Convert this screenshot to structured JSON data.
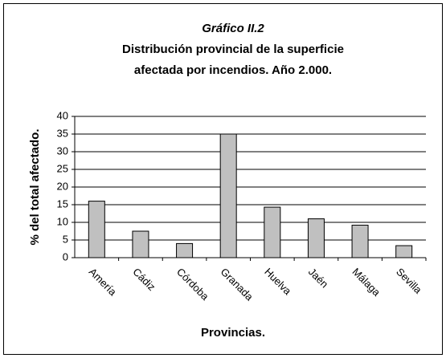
{
  "chart_data": {
    "type": "bar",
    "title": "Gráfico II.2",
    "subtitle": [
      "Distribución provincial de la superficie",
      "afectada por incendios. Año 2.000."
    ],
    "x_label": "Provincias.",
    "y_label": "% del total afectado.",
    "categories": [
      "Amería",
      "Cádiz",
      "Córdoba",
      "Granada",
      "Huelva",
      "Jaén",
      "Málaga",
      "Sevilla"
    ],
    "values": [
      16,
      7.5,
      4,
      35,
      14.3,
      11,
      9.2,
      3.4
    ],
    "color": "#c0c0c0",
    "ylim": [
      0,
      40
    ],
    "yticks": [
      0,
      5,
      10,
      15,
      20,
      25,
      30,
      35,
      40
    ],
    "grid": true
  }
}
